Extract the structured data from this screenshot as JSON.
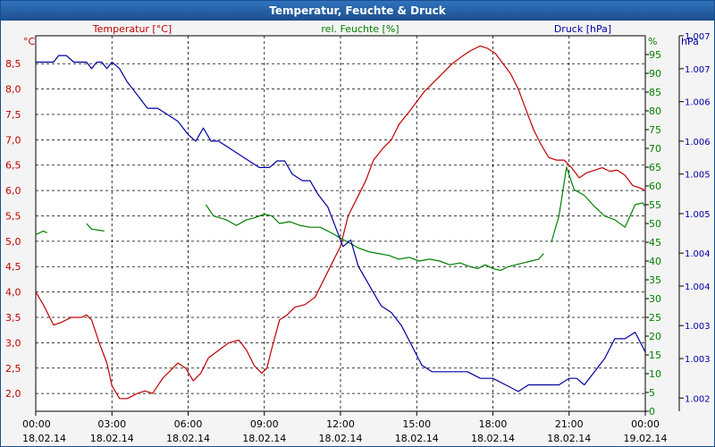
{
  "chart_data": {
    "type": "line",
    "title": "Temperatur, Feuchte & Druck",
    "x_ticks": [
      {
        "time": "00:00",
        "date": "18.02.14"
      },
      {
        "time": "03:00",
        "date": "18.02.14"
      },
      {
        "time": "06:00",
        "date": "18.02.14"
      },
      {
        "time": "09:00",
        "date": "18.02.14"
      },
      {
        "time": "12:00",
        "date": "18.02.14"
      },
      {
        "time": "15:00",
        "date": "18.02.14"
      },
      {
        "time": "18:00",
        "date": "18.02.14"
      },
      {
        "time": "21:00",
        "date": "18.02.14"
      },
      {
        "time": "00:00",
        "date": "19.02.14"
      }
    ],
    "xlim_hours": [
      0,
      24
    ],
    "axes": {
      "temperature": {
        "label": "Temperatur [°C]",
        "unit": "°C",
        "color": "#c00000",
        "ylim": [
          1.65,
          9.05
        ],
        "ticks": [
          "2,0",
          "2,5",
          "3,0",
          "3,5",
          "4,0",
          "4,5",
          "5,0",
          "5,5",
          "6,0",
          "6,5",
          "7,0",
          "7,5",
          "8,0",
          "8,5"
        ],
        "tick_values": [
          2.0,
          2.5,
          3.0,
          3.5,
          4.0,
          4.5,
          5.0,
          5.5,
          6.0,
          6.5,
          7.0,
          7.5,
          8.0,
          8.5
        ]
      },
      "humidity": {
        "label": "rel. Feuchte [%]",
        "unit": "%",
        "color": "#008000",
        "ylim": [
          0,
          100
        ],
        "ticks": [
          "0",
          "5",
          "10",
          "15",
          "20",
          "25",
          "30",
          "35",
          "40",
          "45",
          "50",
          "55",
          "60",
          "65",
          "70",
          "75",
          "80",
          "85",
          "90",
          "95"
        ],
        "tick_values": [
          0,
          5,
          10,
          15,
          20,
          25,
          30,
          35,
          40,
          45,
          50,
          55,
          60,
          65,
          70,
          75,
          80,
          85,
          90,
          95
        ]
      },
      "pressure": {
        "label": "Druck [hPa]",
        "unit": "hPa",
        "color": "#0000a0",
        "ylim": [
          1.0018,
          1.0075
        ],
        "ticks": [
          "1.002",
          "1.003",
          "1.003",
          "1.004",
          "1.004",
          "1.005",
          "1.005",
          "1.006",
          "1.006",
          "1.007",
          "1.007"
        ],
        "tick_values": [
          1.002,
          1.0026,
          1.0031,
          1.0037,
          1.0042,
          1.0048,
          1.0054,
          1.0059,
          1.0065,
          1.007,
          1.0075
        ]
      }
    },
    "series": [
      {
        "name": "Temperatur",
        "axis": "temperature",
        "color": "#c00000",
        "points": [
          [
            0,
            4.0
          ],
          [
            0.3,
            3.75
          ],
          [
            0.7,
            3.35
          ],
          [
            1.0,
            3.4
          ],
          [
            1.4,
            3.5
          ],
          [
            1.8,
            3.5
          ],
          [
            2.0,
            3.55
          ],
          [
            2.2,
            3.45
          ],
          [
            2.5,
            3.0
          ],
          [
            2.8,
            2.6
          ],
          [
            3.0,
            2.15
          ],
          [
            3.3,
            1.9
          ],
          [
            3.6,
            1.9
          ],
          [
            4.0,
            2.0
          ],
          [
            4.3,
            2.05
          ],
          [
            4.6,
            2.0
          ],
          [
            5.0,
            2.3
          ],
          [
            5.3,
            2.45
          ],
          [
            5.6,
            2.6
          ],
          [
            5.9,
            2.5
          ],
          [
            6.2,
            2.25
          ],
          [
            6.5,
            2.4
          ],
          [
            6.8,
            2.7
          ],
          [
            7.2,
            2.85
          ],
          [
            7.6,
            3.0
          ],
          [
            8.0,
            3.05
          ],
          [
            8.3,
            2.85
          ],
          [
            8.6,
            2.55
          ],
          [
            8.9,
            2.4
          ],
          [
            9.1,
            2.5
          ],
          [
            9.3,
            2.9
          ],
          [
            9.6,
            3.45
          ],
          [
            9.9,
            3.55
          ],
          [
            10.2,
            3.7
          ],
          [
            10.6,
            3.75
          ],
          [
            11.0,
            3.9
          ],
          [
            11.3,
            4.2
          ],
          [
            11.6,
            4.5
          ],
          [
            12.0,
            4.9
          ],
          [
            12.3,
            5.5
          ],
          [
            12.7,
            5.9
          ],
          [
            13.0,
            6.2
          ],
          [
            13.3,
            6.6
          ],
          [
            13.7,
            6.85
          ],
          [
            14.0,
            7.0
          ],
          [
            14.3,
            7.3
          ],
          [
            14.7,
            7.55
          ],
          [
            15.0,
            7.75
          ],
          [
            15.3,
            7.95
          ],
          [
            15.7,
            8.15
          ],
          [
            16.0,
            8.3
          ],
          [
            16.4,
            8.5
          ],
          [
            16.8,
            8.65
          ],
          [
            17.1,
            8.75
          ],
          [
            17.5,
            8.85
          ],
          [
            17.8,
            8.8
          ],
          [
            18.1,
            8.7
          ],
          [
            18.4,
            8.5
          ],
          [
            18.7,
            8.3
          ],
          [
            19.0,
            8.0
          ],
          [
            19.3,
            7.6
          ],
          [
            19.6,
            7.2
          ],
          [
            19.9,
            6.9
          ],
          [
            20.2,
            6.65
          ],
          [
            20.5,
            6.6
          ],
          [
            20.8,
            6.6
          ],
          [
            21.1,
            6.45
          ],
          [
            21.4,
            6.25
          ],
          [
            21.7,
            6.35
          ],
          [
            22.0,
            6.4
          ],
          [
            22.3,
            6.45
          ],
          [
            22.6,
            6.38
          ],
          [
            22.9,
            6.4
          ],
          [
            23.2,
            6.3
          ],
          [
            23.5,
            6.1
          ],
          [
            23.8,
            6.05
          ],
          [
            24.0,
            6.0
          ]
        ]
      },
      {
        "name": "rel. Feuchte",
        "axis": "humidity",
        "color": "#008000",
        "segments": [
          [
            [
              0,
              47
            ],
            [
              0.3,
              48
            ],
            [
              0.45,
              47.5
            ]
          ],
          [
            [
              2.0,
              50
            ],
            [
              2.2,
              48.5
            ],
            [
              2.7,
              48
            ]
          ],
          [
            [
              6.7,
              55
            ],
            [
              7.0,
              52
            ],
            [
              7.5,
              51
            ],
            [
              7.9,
              49.5
            ],
            [
              8.3,
              51
            ],
            [
              8.6,
              51.5
            ],
            [
              9.0,
              52.5
            ],
            [
              9.3,
              52
            ],
            [
              9.6,
              50
            ],
            [
              10.0,
              50.5
            ],
            [
              10.4,
              49.5
            ],
            [
              10.8,
              49
            ],
            [
              11.2,
              49
            ],
            [
              11.5,
              48
            ],
            [
              11.9,
              46.5
            ],
            [
              12.3,
              45
            ],
            [
              12.7,
              43.5
            ],
            [
              13.1,
              42.5
            ],
            [
              13.5,
              42
            ],
            [
              13.9,
              41.5
            ],
            [
              14.3,
              40.5
            ],
            [
              14.7,
              41
            ],
            [
              15.1,
              40
            ],
            [
              15.5,
              40.5
            ],
            [
              15.9,
              40
            ],
            [
              16.3,
              39
            ],
            [
              16.7,
              39.5
            ],
            [
              17.1,
              38.5
            ],
            [
              17.4,
              38
            ],
            [
              17.7,
              39
            ],
            [
              18.0,
              38
            ],
            [
              18.3,
              37.5
            ],
            [
              18.6,
              38.5
            ],
            [
              18.9,
              39
            ],
            [
              19.2,
              39.5
            ],
            [
              19.5,
              40
            ],
            [
              19.8,
              40.5
            ],
            [
              20.0,
              42
            ]
          ],
          [
            [
              20.3,
              45
            ],
            [
              20.6,
              52
            ],
            [
              20.9,
              65
            ],
            [
              21.2,
              59
            ],
            [
              21.6,
              57.5
            ],
            [
              22.0,
              54.5
            ],
            [
              22.4,
              52
            ],
            [
              22.8,
              51
            ],
            [
              23.2,
              49
            ],
            [
              23.6,
              55
            ],
            [
              23.9,
              55.5
            ],
            [
              24.0,
              54.5
            ]
          ]
        ]
      },
      {
        "name": "Druck",
        "axis": "pressure",
        "color": "#0000a0",
        "points": [
          [
            0,
            1.0071
          ],
          [
            0.7,
            1.0071
          ],
          [
            0.9,
            1.0072
          ],
          [
            1.2,
            1.0072
          ],
          [
            1.5,
            1.0071
          ],
          [
            1.8,
            1.0071
          ],
          [
            2.0,
            1.0071
          ],
          [
            2.2,
            1.007
          ],
          [
            2.4,
            1.0071
          ],
          [
            2.6,
            1.0071
          ],
          [
            2.8,
            1.007
          ],
          [
            3.0,
            1.0071
          ],
          [
            3.3,
            1.007
          ],
          [
            3.6,
            1.0068
          ],
          [
            4.0,
            1.0066
          ],
          [
            4.4,
            1.0064
          ],
          [
            4.8,
            1.0064
          ],
          [
            5.2,
            1.0063
          ],
          [
            5.6,
            1.0062
          ],
          [
            6.0,
            1.006
          ],
          [
            6.3,
            1.0059
          ],
          [
            6.6,
            1.0061
          ],
          [
            6.9,
            1.0059
          ],
          [
            7.2,
            1.0059
          ],
          [
            7.6,
            1.0058
          ],
          [
            8.0,
            1.0057
          ],
          [
            8.4,
            1.0056
          ],
          [
            8.8,
            1.0055
          ],
          [
            9.2,
            1.0055
          ],
          [
            9.5,
            1.0056
          ],
          [
            9.8,
            1.0056
          ],
          [
            10.1,
            1.0054
          ],
          [
            10.5,
            1.0053
          ],
          [
            10.8,
            1.0053
          ],
          [
            11.1,
            1.0051
          ],
          [
            11.5,
            1.0049
          ],
          [
            11.8,
            1.0046
          ],
          [
            12.1,
            1.0043
          ],
          [
            12.4,
            1.0044
          ],
          [
            12.7,
            1.004
          ],
          [
            13.0,
            1.0038
          ],
          [
            13.3,
            1.0036
          ],
          [
            13.6,
            1.0034
          ],
          [
            14.0,
            1.0033
          ],
          [
            14.4,
            1.0031
          ],
          [
            14.8,
            1.0028
          ],
          [
            15.2,
            1.0025
          ],
          [
            15.6,
            1.0024
          ],
          [
            16.0,
            1.0024
          ],
          [
            16.5,
            1.0024
          ],
          [
            17.0,
            1.0024
          ],
          [
            17.5,
            1.0023
          ],
          [
            18.0,
            1.0023
          ],
          [
            18.5,
            1.0022
          ],
          [
            19.0,
            1.0021
          ],
          [
            19.4,
            1.0022
          ],
          [
            19.8,
            1.0022
          ],
          [
            20.2,
            1.0022
          ],
          [
            20.6,
            1.0022
          ],
          [
            21.0,
            1.0023
          ],
          [
            21.3,
            1.0023
          ],
          [
            21.6,
            1.0022
          ],
          [
            22.0,
            1.0024
          ],
          [
            22.4,
            1.0026
          ],
          [
            22.8,
            1.0029
          ],
          [
            23.2,
            1.0029
          ],
          [
            23.6,
            1.003
          ],
          [
            24.0,
            1.0027
          ]
        ]
      }
    ]
  }
}
